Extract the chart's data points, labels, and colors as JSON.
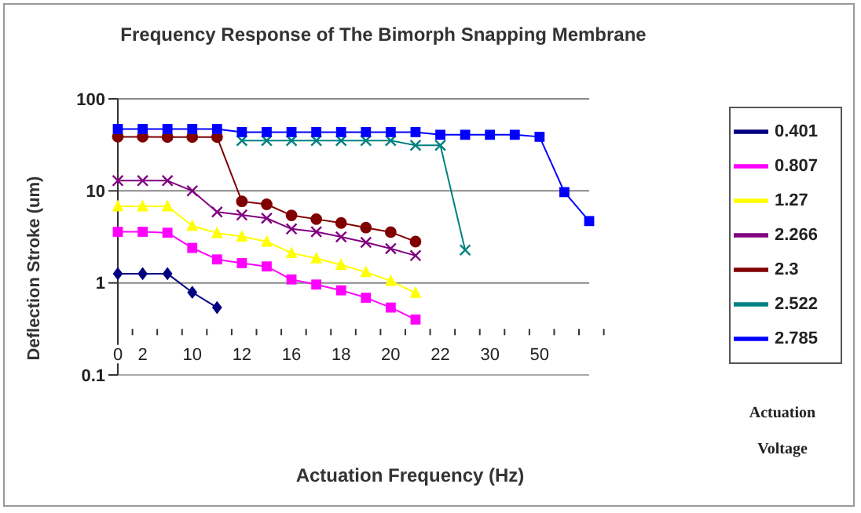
{
  "chart_data": {
    "type": "line",
    "title": "Frequency Response of The Bimorph Snapping Membrane",
    "xlabel": "Actuation Frequency (Hz)",
    "ylabel": "Deflection Stroke (um)",
    "legend_title": "Actuation Voltage",
    "categories": [
      "0",
      "2",
      null,
      "10",
      null,
      "12",
      null,
      "16",
      null,
      "18",
      null,
      "20",
      null,
      "22",
      null,
      "30",
      null,
      "50",
      null,
      null
    ],
    "series": [
      {
        "name": "0.401",
        "color": "#000080",
        "marker": "diamond",
        "values": [
          1.26,
          1.26,
          1.26,
          0.79,
          0.54,
          null,
          null,
          null,
          null,
          null,
          null,
          null,
          null,
          null,
          null,
          null,
          null,
          null,
          null,
          null
        ]
      },
      {
        "name": "0.807",
        "color": "#ff00ff",
        "marker": "square",
        "values": [
          3.59,
          3.59,
          3.51,
          2.4,
          1.8,
          1.64,
          1.51,
          1.09,
          0.96,
          0.83,
          0.69,
          0.54,
          0.4,
          null,
          null,
          null,
          null,
          null,
          null,
          null
        ]
      },
      {
        "name": "1.27",
        "color": "#ffff00",
        "marker": "triangle",
        "values": [
          6.8,
          6.8,
          6.8,
          4.17,
          3.48,
          3.19,
          2.81,
          2.11,
          1.85,
          1.57,
          1.31,
          1.05,
          0.78,
          null,
          null,
          null,
          null,
          null,
          null,
          null
        ]
      },
      {
        "name": "2.266",
        "color": "#800080",
        "marker": "cross",
        "values": [
          12.9,
          12.9,
          12.9,
          10,
          5.9,
          5.47,
          5.04,
          3.86,
          3.59,
          3.16,
          2.76,
          2.36,
          1.98,
          null,
          null,
          null,
          null,
          null,
          null,
          null
        ]
      },
      {
        "name": "2.3",
        "color": "#800000",
        "marker": "circle",
        "values": [
          38.7,
          38.7,
          38.4,
          38.4,
          38.4,
          7.69,
          7.14,
          5.42,
          4.93,
          4.48,
          3.99,
          3.56,
          2.81,
          null,
          null,
          null,
          null,
          null,
          null,
          null
        ]
      },
      {
        "name": "2.522",
        "color": "#008080",
        "marker": "cross",
        "values": [
          null,
          null,
          null,
          null,
          null,
          35.2,
          35.2,
          35.2,
          35.2,
          35.2,
          35.2,
          35.2,
          31.3,
          31.3,
          2.28,
          null,
          null,
          null,
          null,
          null
        ]
      },
      {
        "name": "2.785",
        "color": "#0000ff",
        "marker": "square",
        "values": [
          47,
          47,
          47,
          47,
          47,
          43.5,
          43.5,
          43.5,
          43.5,
          43.5,
          43.5,
          43.5,
          43.5,
          40.7,
          40.7,
          40.7,
          40.7,
          38.7,
          9.7,
          4.7
        ]
      }
    ],
    "log": true,
    "ylim": [
      0.1,
      100
    ],
    "yticks": [
      0.1,
      1,
      10,
      100
    ],
    "grid": "y",
    "legend": "right"
  }
}
